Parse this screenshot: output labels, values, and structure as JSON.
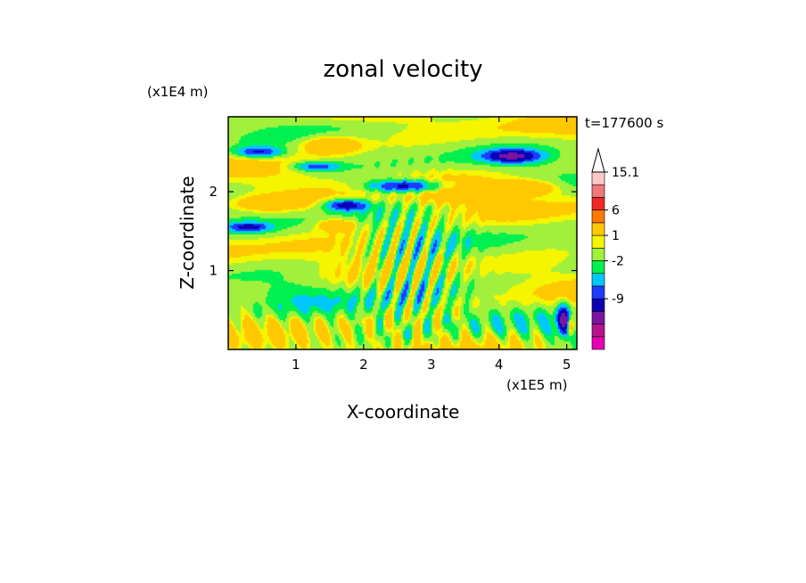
{
  "chart_data": {
    "type": "heatmap",
    "title": "zonal velocity",
    "xlabel": "X-coordinate",
    "ylabel": "Z-coordinate",
    "x_unit": "(x1E5 m)",
    "y_unit": "(x1E4 m)",
    "time_label": "t=177600 s",
    "xlim": [
      0,
      5.15
    ],
    "ylim": [
      0,
      2.95
    ],
    "x_ticks": [
      1,
      2,
      3,
      4,
      5
    ],
    "x_tick_labels": [
      "1",
      "2",
      "3",
      "4",
      "5"
    ],
    "y_ticks": [
      1,
      2
    ],
    "y_tick_labels": [
      "1",
      "2"
    ],
    "colorbar": {
      "colors": [
        "#e600b4",
        "#b4148c",
        "#7d14a0",
        "#0a00b4",
        "#1e3cff",
        "#00c8ff",
        "#00f050",
        "#a0f03c",
        "#f5f500",
        "#ffc800",
        "#ff7800",
        "#f02828",
        "#f07878",
        "#ffc8c8"
      ],
      "labels": [
        {
          "text": "-9",
          "level": 4
        },
        {
          "text": "-2",
          "level": 7
        },
        {
          "text": "1",
          "level": 9
        },
        {
          "text": "6",
          "level": 11
        },
        {
          "text": "15.1",
          "level": 14
        }
      ],
      "triangle_color": "#ffffff"
    }
  }
}
